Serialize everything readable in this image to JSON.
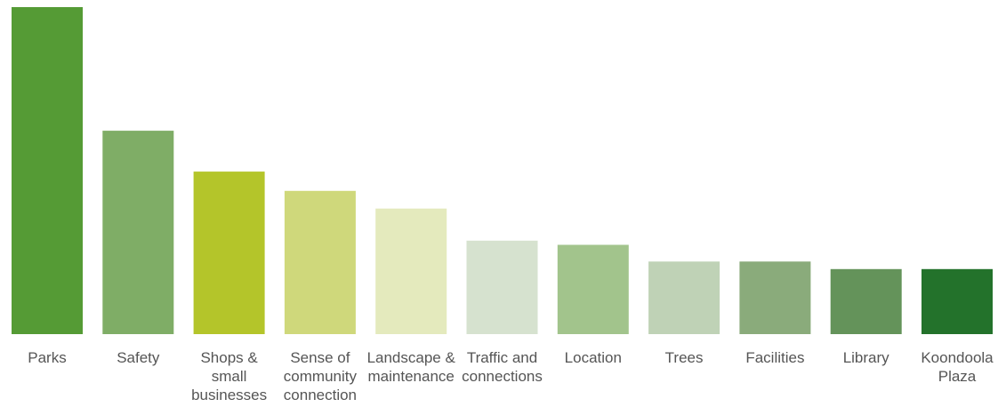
{
  "chart_data": {
    "type": "bar",
    "title": "",
    "xlabel": "",
    "ylabel": "",
    "ylim": [
      0,
      100
    ],
    "grid": false,
    "legend": "none",
    "categories": [
      {
        "lines": [
          "Parks"
        ],
        "value": 100,
        "color": "#559b35"
      },
      {
        "lines": [
          "Safety"
        ],
        "value": 62.2,
        "color": "#7fad66"
      },
      {
        "lines": [
          "Shops &",
          "small",
          "businesses"
        ],
        "value": 49.7,
        "color": "#b4c52a"
      },
      {
        "lines": [
          "Sense of",
          "community",
          "connection"
        ],
        "value": 43.8,
        "color": "#cfd87b"
      },
      {
        "lines": [
          "Landscape &",
          "maintenance"
        ],
        "value": 38.4,
        "color": "#e4eabd"
      },
      {
        "lines": [
          "Traffic and",
          "connections"
        ],
        "value": 28.6,
        "color": "#d6e2cf"
      },
      {
        "lines": [
          "Location"
        ],
        "value": 27.3,
        "color": "#a2c48c"
      },
      {
        "lines": [
          "Trees"
        ],
        "value": 22.2,
        "color": "#bfd2b6"
      },
      {
        "lines": [
          "Facilities"
        ],
        "value": 22.2,
        "color": "#8aab7b"
      },
      {
        "lines": [
          "Library"
        ],
        "value": 19.9,
        "color": "#64935a"
      },
      {
        "lines": [
          "Koondoola",
          "Plaza"
        ],
        "value": 19.9,
        "color": "#23722b"
      }
    ]
  }
}
